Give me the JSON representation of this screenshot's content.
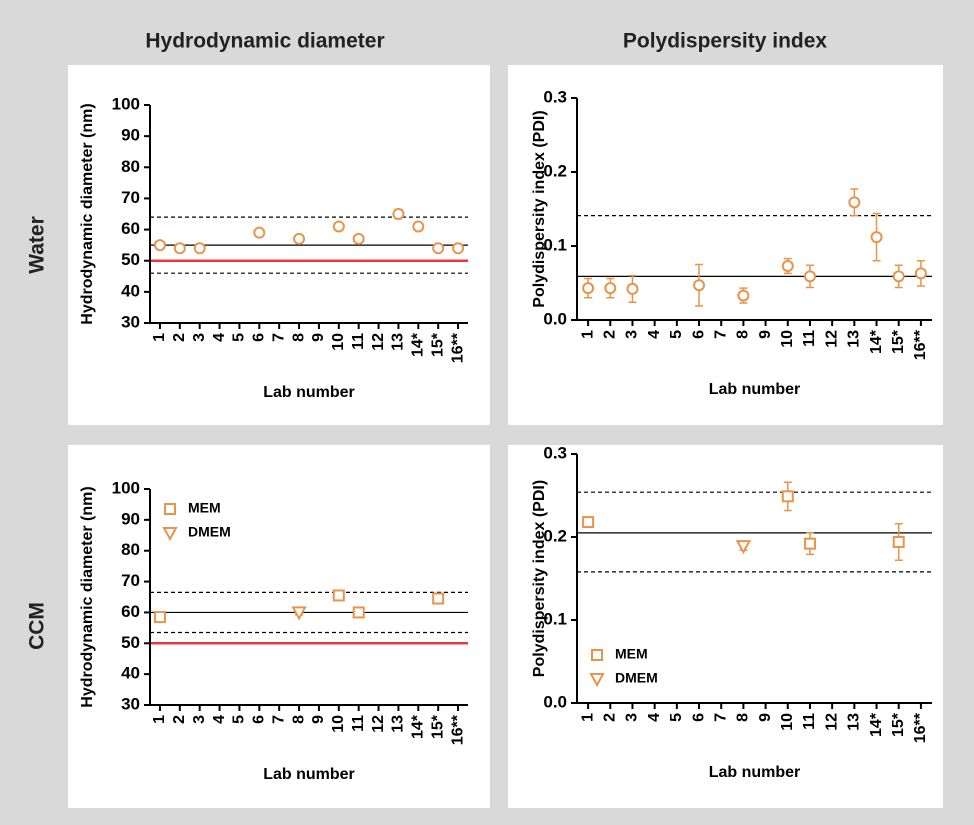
{
  "column_titles": [
    "Hydrodynamic diameter",
    "Polydispersity index"
  ],
  "row_titles": [
    "Water",
    "CCM"
  ],
  "chart_data": [
    {
      "type": "scatter",
      "xlabel": "Lab number",
      "ylabel": "Hydrodynamic diameter (nm)",
      "categories": [
        "1",
        "2",
        "3",
        "4",
        "5",
        "6",
        "7",
        "8",
        "9",
        "10",
        "11",
        "12",
        "13",
        "14*",
        "15*",
        "16**"
      ],
      "ylim": [
        30,
        100
      ],
      "yticks": [
        30,
        40,
        50,
        60,
        70,
        80,
        90,
        100
      ],
      "series": [
        {
          "color": "#e8944a",
          "marker": "circle",
          "values": [
            55,
            54,
            54,
            null,
            null,
            59,
            null,
            57,
            null,
            61,
            57,
            null,
            65,
            61,
            54,
            54
          ],
          "errors": [
            0.8,
            0.8,
            0.8,
            null,
            null,
            0.8,
            null,
            0.8,
            null,
            0.8,
            0.8,
            null,
            1.5,
            0.8,
            0.8,
            0.8
          ]
        }
      ],
      "reference_lines": [
        {
          "value": 55,
          "color": "#000000",
          "style": "solid"
        },
        {
          "value": 64,
          "color": "#000000",
          "style": "dashed"
        },
        {
          "value": 46,
          "color": "#000000",
          "style": "dashed"
        },
        {
          "value": 50,
          "color": "#e8383d",
          "style": "solid"
        }
      ]
    },
    {
      "type": "scatter",
      "xlabel": "Lab number",
      "ylabel": "Polydispersity index (PDI)",
      "categories": [
        "1",
        "2",
        "3",
        "4",
        "5",
        "6",
        "7",
        "8",
        "9",
        "10",
        "11",
        "12",
        "13",
        "14*",
        "15*",
        "16**"
      ],
      "ylim": [
        0,
        0.3
      ],
      "yticks": [
        {
          "value": 0,
          "label": "0.0"
        },
        0.1,
        0.2,
        0.3
      ],
      "series": [
        {
          "color": "#e8944a",
          "marker": "circle",
          "values": [
            0.043,
            0.043,
            0.042,
            null,
            null,
            0.047,
            null,
            0.033,
            null,
            0.073,
            0.059,
            null,
            0.159,
            0.112,
            0.059,
            0.063
          ],
          "errors": [
            0.013,
            0.013,
            0.018,
            null,
            null,
            0.028,
            null,
            0.01,
            null,
            0.01,
            0.015,
            null,
            0.018,
            0.032,
            0.015,
            0.017
          ]
        }
      ],
      "reference_lines": [
        {
          "value": 0.059,
          "color": "#000000",
          "style": "solid"
        },
        {
          "value": 0.141,
          "color": "#000000",
          "style": "dashed"
        }
      ]
    },
    {
      "type": "scatter",
      "xlabel": "Lab number",
      "ylabel": "Hydrodynamic diameter (nm)",
      "categories": [
        "1",
        "2",
        "3",
        "4",
        "5",
        "6",
        "7",
        "8",
        "9",
        "10",
        "11",
        "12",
        "13",
        "14*",
        "15*",
        "16**"
      ],
      "ylim": [
        30,
        100
      ],
      "yticks": [
        30,
        40,
        50,
        60,
        70,
        80,
        90,
        100
      ],
      "legend": "upper left",
      "series": [
        {
          "name": "MEM",
          "color": "#e8944a",
          "marker": "square",
          "values": [
            58.5,
            null,
            null,
            null,
            null,
            null,
            null,
            null,
            null,
            65.5,
            60,
            null,
            null,
            null,
            64.5,
            null
          ],
          "errors": [
            0.8,
            null,
            null,
            null,
            null,
            null,
            null,
            null,
            null,
            0.8,
            0.8,
            null,
            null,
            null,
            0.8,
            null
          ]
        },
        {
          "name": "DMEM",
          "color": "#e8944a",
          "marker": "triangle-down",
          "values": [
            null,
            null,
            null,
            null,
            null,
            null,
            null,
            60,
            null,
            null,
            null,
            null,
            null,
            null,
            null,
            null
          ],
          "errors": [
            null,
            null,
            null,
            null,
            null,
            null,
            null,
            0.8,
            null,
            null,
            null,
            null,
            null,
            null,
            null,
            null
          ]
        }
      ],
      "reference_lines": [
        {
          "value": 60,
          "color": "#000000",
          "style": "solid"
        },
        {
          "value": 66.5,
          "color": "#000000",
          "style": "dashed"
        },
        {
          "value": 53.5,
          "color": "#000000",
          "style": "dashed"
        },
        {
          "value": 50,
          "color": "#e8383d",
          "style": "solid"
        }
      ]
    },
    {
      "type": "scatter",
      "xlabel": "Lab number",
      "ylabel": "Polydispersity index (PDI)",
      "categories": [
        "1",
        "2",
        "3",
        "4",
        "5",
        "6",
        "7",
        "8",
        "9",
        "10",
        "11",
        "12",
        "13",
        "14*",
        "15*",
        "16**"
      ],
      "ylim": [
        0,
        0.3
      ],
      "yticks": [
        {
          "value": 0,
          "label": "0.0"
        },
        0.1,
        0.2,
        0.3
      ],
      "legend": "lower left",
      "series": [
        {
          "name": "MEM",
          "color": "#e8944a",
          "marker": "square",
          "values": [
            0.218,
            null,
            null,
            null,
            null,
            null,
            null,
            null,
            null,
            0.249,
            0.192,
            null,
            null,
            null,
            0.194,
            null
          ],
          "errors": [
            0.005,
            null,
            null,
            null,
            null,
            null,
            null,
            null,
            null,
            0.017,
            0.013,
            null,
            null,
            null,
            0.022,
            null
          ]
        },
        {
          "name": "DMEM",
          "color": "#e8944a",
          "marker": "triangle-down",
          "values": [
            null,
            null,
            null,
            null,
            null,
            null,
            null,
            0.189,
            null,
            null,
            null,
            null,
            null,
            null,
            null,
            null
          ],
          "errors": [
            null,
            null,
            null,
            null,
            null,
            null,
            null,
            0.005,
            null,
            null,
            null,
            null,
            null,
            null,
            null,
            null
          ]
        }
      ],
      "reference_lines": [
        {
          "value": 0.205,
          "color": "#000000",
          "style": "solid"
        },
        {
          "value": 0.254,
          "color": "#000000",
          "style": "dashed"
        },
        {
          "value": 0.158,
          "color": "#000000",
          "style": "dashed"
        }
      ]
    }
  ]
}
